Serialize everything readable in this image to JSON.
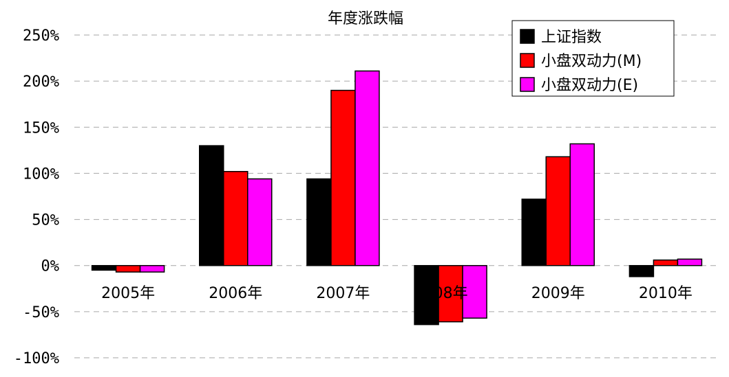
{
  "chart_data": {
    "type": "bar",
    "title": "年度涨跌幅",
    "xlabel": "",
    "ylabel": "",
    "categories": [
      "2005年",
      "2006年",
      "2007年",
      "08年",
      "2009年",
      "2010年"
    ],
    "series": [
      {
        "name": "上证指数",
        "color": "#000000",
        "values": [
          -5,
          130,
          94,
          -64,
          72,
          -12
        ]
      },
      {
        "name": "小盘双动力(M)",
        "color": "#ff0000",
        "values": [
          -7,
          102,
          190,
          -61,
          118,
          6
        ]
      },
      {
        "name": "小盘双动力(E)",
        "color": "#ff00ff",
        "values": [
          -7,
          94,
          211,
          -57,
          132,
          7
        ]
      }
    ],
    "ylim": [
      -100,
      250
    ],
    "yticks": [
      250,
      200,
      150,
      100,
      50,
      0,
      -50,
      -100
    ],
    "ytick_labels": [
      "250%",
      "200%",
      "150%",
      "100%",
      "50%",
      "0%",
      "-50%",
      "-100%"
    ],
    "grid": true,
    "legend_position": "top-right"
  }
}
